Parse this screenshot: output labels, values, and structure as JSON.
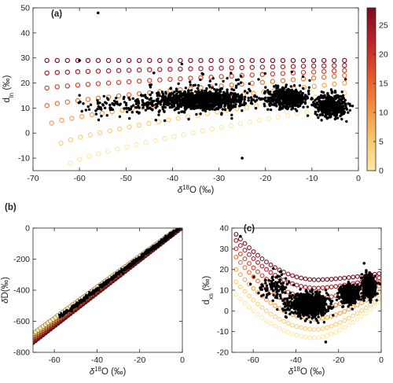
{
  "figure": {
    "panels": [
      {
        "id": "a",
        "label": "(a)",
        "xlabel_main": "δ",
        "xlabel_sup": "18",
        "xlabel_tail": "O (‰)",
        "ylabel_main": "d",
        "ylabel_sub": "ln",
        "ylabel_tail": " (‰)",
        "xlim": [
          -70,
          0
        ],
        "ylim": [
          -15,
          50
        ],
        "xticks": [
          -70,
          -60,
          -50,
          -40,
          -30,
          -20,
          -10,
          0
        ],
        "yticks": [
          -10,
          0,
          10,
          20,
          30,
          40,
          50
        ]
      },
      {
        "id": "b",
        "label": "(b)",
        "xlabel_main": "δ",
        "xlabel_sup": "18",
        "xlabel_tail": "O (‰)",
        "ylabel_main": "δ",
        "ylabel_sub": "",
        "ylabel_tail": "D(‰)",
        "xlim": [
          -70,
          0
        ],
        "ylim": [
          -800,
          0
        ],
        "xticks": [
          -60,
          -40,
          -20,
          0
        ],
        "yticks": [
          -800,
          -600,
          -400,
          -200,
          0
        ]
      },
      {
        "id": "c",
        "label": "(c)",
        "xlabel_main": "δ",
        "xlabel_sup": "18",
        "xlabel_tail": "O (‰)",
        "ylabel_main": "d",
        "ylabel_sub": "xs",
        "ylabel_tail": " (‰)",
        "xlim": [
          -70,
          0
        ],
        "ylim": [
          -20,
          40
        ],
        "xticks": [
          -60,
          -40,
          -20,
          0
        ],
        "yticks": [
          -20,
          -10,
          0,
          10,
          20,
          30,
          40
        ]
      }
    ],
    "colorbar": {
      "range": [
        0,
        28
      ],
      "ticks": [
        0,
        5,
        10,
        15,
        20,
        25
      ],
      "colors": [
        "#fde9a4",
        "#f9c46b",
        "#f28c3c",
        "#e0522c",
        "#b8222a",
        "#7a0d1e"
      ]
    }
  },
  "chart_data": [
    {
      "type": "scatter",
      "panel": "a",
      "series": [
        {
          "kind": "model-open-circles",
          "rows": [
            {
              "c": 28,
              "y_start": 29,
              "y_end": 29,
              "x_start": -67,
              "x_end": -3
            },
            {
              "c": 24,
              "y_start": 24,
              "y_end": 27,
              "x_start": -67,
              "x_end": -3
            },
            {
              "c": 19,
              "y_start": 18,
              "y_end": 25,
              "x_start": -67,
              "x_end": -3
            },
            {
              "c": 14,
              "y_start": 11,
              "y_end": 23,
              "x_start": -67,
              "x_end": -3
            },
            {
              "c": 9,
              "y_start": 4,
              "y_end": 20,
              "x_start": -66,
              "x_end": -3
            },
            {
              "c": 4,
              "y_start": -4,
              "y_end": 16,
              "x_start": -64,
              "x_end": -3
            },
            {
              "c": 0,
              "y_start": -12,
              "y_end": 11,
              "x_start": -62,
              "x_end": -3
            }
          ]
        },
        {
          "kind": "observations-black-dots",
          "clusters": [
            {
              "x_center": -34,
              "y_center": 13,
              "x_spread": 9,
              "y_spread": 3.5,
              "n": 900
            },
            {
              "x_center": -15,
              "y_center": 14,
              "x_spread": 4,
              "y_spread": 3.5,
              "n": 450
            },
            {
              "x_center": -6,
              "y_center": 11,
              "x_spread": 3,
              "y_spread": 4,
              "n": 450
            },
            {
              "x_center": -50,
              "y_center": 11,
              "x_spread": 9,
              "y_spread": 4,
              "n": 120
            },
            {
              "x_center": -28,
              "y_center": 17,
              "x_spread": 16,
              "y_spread": 7,
              "n": 100
            }
          ],
          "outliers": [
            {
              "x": -56,
              "y": 48
            },
            {
              "x": -60,
              "y": 29
            },
            {
              "x": -25,
              "y": -10
            },
            {
              "x": -44,
              "y": 24
            }
          ]
        }
      ]
    },
    {
      "type": "scatter",
      "panel": "b",
      "series": [
        {
          "kind": "model-filled-circles",
          "line": {
            "slope": 10.3,
            "intercept": 12
          },
          "x_range": [
            -70,
            -1
          ]
        },
        {
          "kind": "observations-black-dots",
          "line": {
            "slope": 10.2,
            "intercept": 13
          },
          "x_range": [
            -58,
            -1
          ]
        }
      ]
    },
    {
      "type": "scatter",
      "panel": "c",
      "series": [
        {
          "kind": "model-open-circles",
          "rows": [
            {
              "c": 28,
              "y_left": 37,
              "y_min": 15,
              "y_right": 18
            },
            {
              "c": 24,
              "y_left": 34,
              "y_min": 11,
              "y_right": 16
            },
            {
              "c": 19,
              "y_left": 30,
              "y_min": 6,
              "y_right": 14
            },
            {
              "c": 14,
              "y_left": 26,
              "y_min": 1,
              "y_right": 12
            },
            {
              "c": 9,
              "y_left": 20,
              "y_min": -4,
              "y_right": 9
            },
            {
              "c": 4,
              "y_left": 14,
              "y_min": -9,
              "y_right": 6
            },
            {
              "c": 0,
              "y_left": 8,
              "y_min": -13,
              "y_right": 4
            }
          ],
          "x_range": [
            -68,
            -1
          ],
          "x_min_at": -30
        },
        {
          "kind": "observations-black-dots",
          "clusters": [
            {
              "x_center": -34,
              "y_center": 3,
              "x_spread": 8,
              "y_spread": 4.5,
              "n": 900
            },
            {
              "x_center": -15,
              "y_center": 8,
              "x_spread": 4,
              "y_spread": 4,
              "n": 400
            },
            {
              "x_center": -6,
              "y_center": 12,
              "x_spread": 3,
              "y_spread": 5,
              "n": 400
            },
            {
              "x_center": -50,
              "y_center": 12,
              "x_spread": 7,
              "y_spread": 5,
              "n": 100
            }
          ],
          "outliers": [
            {
              "x": -26,
              "y": -15
            },
            {
              "x": -8,
              "y": 23
            },
            {
              "x": -66,
              "y": 36
            }
          ]
        }
      ]
    }
  ]
}
